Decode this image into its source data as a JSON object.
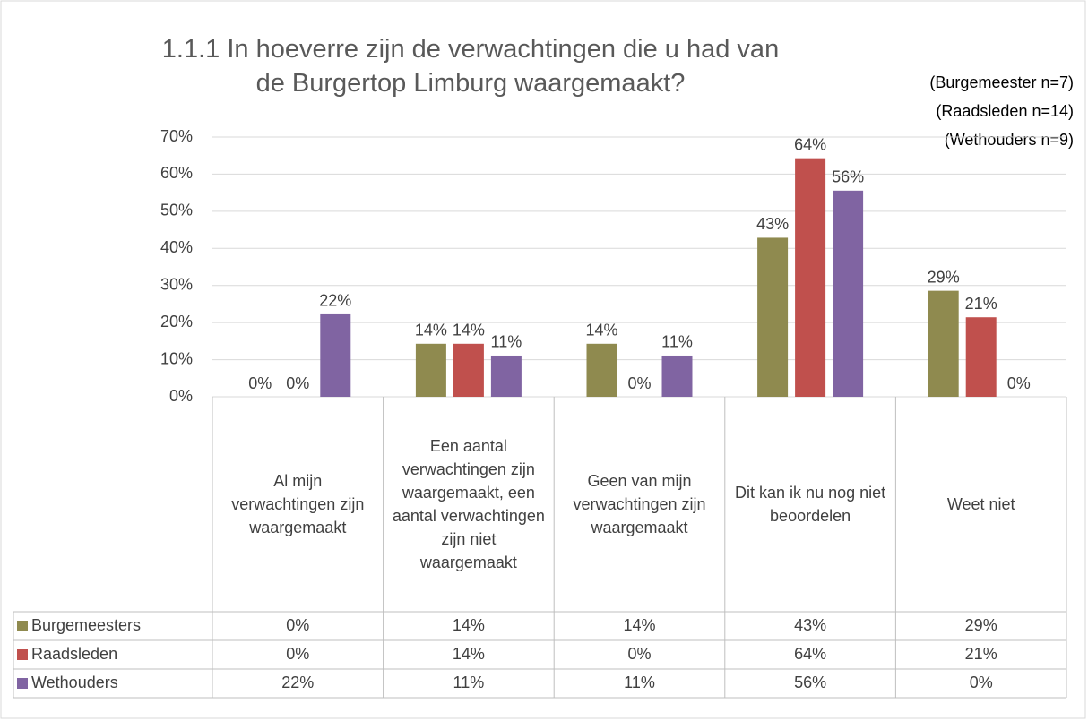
{
  "chart_data": {
    "type": "bar",
    "title": "1.1.1 In hoeverre zijn de verwachtingen die u had van de Burgertop Limburg waargemaakt?",
    "annotations": [
      "(Burgemeester n=7)",
      "(Raadsleden n=14)",
      "(Wethouders n=9)"
    ],
    "categories": [
      "Al mijn verwachtingen zijn waargemaakt",
      "Een aantal verwachtingen zijn waargemaakt, een aantal verwachtingen zijn niet waargemaakt",
      "Geen van mijn verwachtingen zijn waargemaakt",
      "Dit kan ik nu nog niet beoordelen",
      "Weet niet"
    ],
    "series": [
      {
        "name": "Burgemeesters",
        "color": "#8f8a4f",
        "values": [
          0,
          14.29,
          14.29,
          42.86,
          28.57
        ],
        "value_labels": [
          "0%",
          "14%",
          "14%",
          "43%",
          "29%"
        ]
      },
      {
        "name": "Raadsleden",
        "color": "#c0504d",
        "values": [
          0,
          14.29,
          0,
          64.29,
          21.43
        ],
        "value_labels": [
          "0%",
          "14%",
          "0%",
          "64%",
          "21%"
        ]
      },
      {
        "name": "Wethouders",
        "color": "#8064a2",
        "values": [
          22.22,
          11.11,
          11.11,
          55.56,
          0
        ],
        "value_labels": [
          "22%",
          "11%",
          "11%",
          "56%",
          "0%"
        ]
      }
    ],
    "ylim": [
      0,
      70
    ],
    "yticks": [
      {
        "value": 0,
        "label": "0%"
      },
      {
        "value": 10,
        "label": "10%"
      },
      {
        "value": 20,
        "label": "20%"
      },
      {
        "value": 30,
        "label": "30%"
      },
      {
        "value": 40,
        "label": "40%"
      },
      {
        "value": 50,
        "label": "50%"
      },
      {
        "value": 60,
        "label": "60%"
      },
      {
        "value": 70,
        "label": "70%"
      }
    ],
    "grid": true
  }
}
